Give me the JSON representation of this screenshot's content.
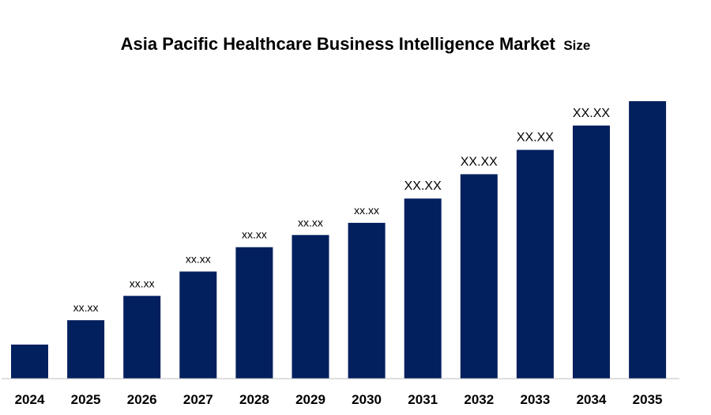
{
  "chart_data": {
    "type": "bar",
    "title": "Asia Pacific Healthcare Business Intelligence Market",
    "title_suffix": "Size",
    "xlabel": "",
    "ylabel": "",
    "categories": [
      "2024",
      "2025",
      "2026",
      "2027",
      "2028",
      "2029",
      "2030",
      "2031",
      "2032",
      "2033",
      "2034",
      "2035"
    ],
    "values": [
      14,
      24,
      34,
      44,
      54,
      59,
      64,
      74,
      84,
      94,
      104,
      114
    ],
    "data_labels": [
      "",
      "xx.xx",
      "xx.xx",
      "xx.xx",
      "xx.xx",
      "xx.xx",
      "xx.xx",
      "XX.XX",
      "XX.XX",
      "XX.XX",
      "XX.XX",
      ""
    ],
    "ylim": [
      0,
      114
    ],
    "grid": false,
    "legend": "none",
    "bar_color": "#021F5E"
  }
}
